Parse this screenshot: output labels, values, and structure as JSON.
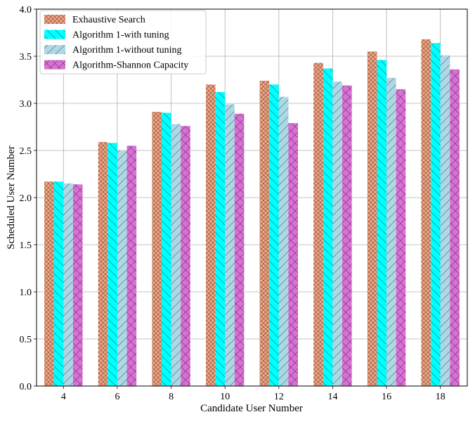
{
  "chart_data": {
    "type": "bar",
    "xlabel": "Candidate User Number",
    "ylabel": "Scheduled User Number",
    "categories": [
      "4",
      "6",
      "8",
      "10",
      "12",
      "14",
      "16",
      "18"
    ],
    "ylim": [
      0,
      4.0
    ],
    "yticks": [
      "0.0",
      "0.5",
      "1.0",
      "1.5",
      "2.0",
      "2.5",
      "3.0",
      "3.5",
      "4.0"
    ],
    "grid": true,
    "legend_position": "top-left",
    "series": [
      {
        "name": "Exhaustive Search",
        "color": "#f4a582",
        "hatch": "crosshatch",
        "values": [
          2.17,
          2.59,
          2.91,
          3.2,
          3.24,
          3.43,
          3.55,
          3.68
        ]
      },
      {
        "name": "Algorithm 1-with tuning",
        "color": "#00ffff",
        "hatch": "backslash",
        "values": [
          2.17,
          2.58,
          2.9,
          3.12,
          3.2,
          3.37,
          3.46,
          3.64
        ]
      },
      {
        "name": "Algorithm 1-without tuning",
        "color": "#add8e6",
        "hatch": "slash",
        "values": [
          2.15,
          2.5,
          2.78,
          2.99,
          3.07,
          3.23,
          3.27,
          3.51
        ]
      },
      {
        "name": "Algorithm-Shannon Capacity",
        "color": "#da70d6",
        "hatch": "cross",
        "values": [
          2.14,
          2.55,
          2.76,
          2.89,
          2.79,
          3.19,
          3.15,
          3.36
        ]
      }
    ]
  }
}
